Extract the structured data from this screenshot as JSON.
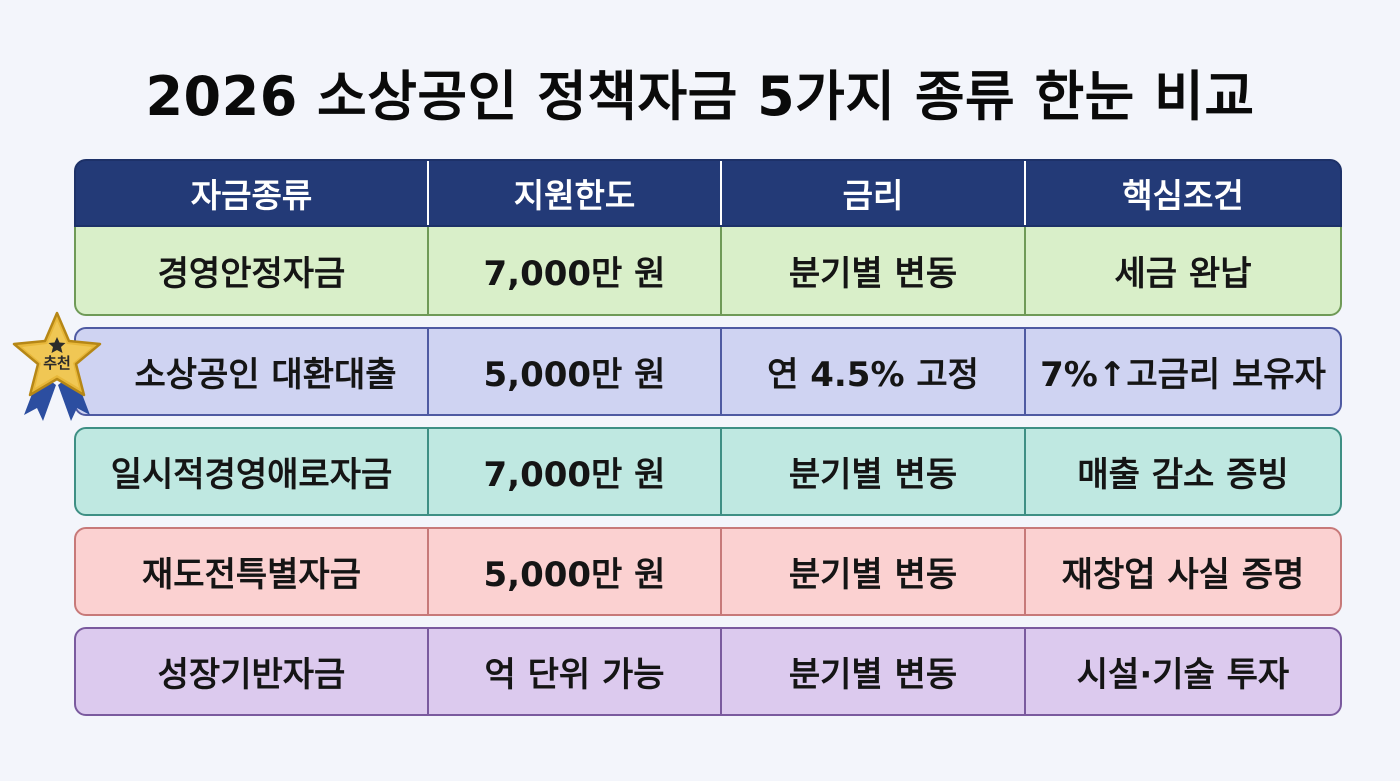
{
  "title": "2026 소상공인 정책자금 5가지 종류 한눈 비교",
  "table": {
    "headers": [
      "자금종류",
      "지원한도",
      "금리",
      "핵심조건"
    ],
    "rows": [
      {
        "cells": [
          "경영안정자금",
          "7,000만 원",
          "분기별 변동",
          "세금 완납"
        ],
        "bg": "#d9efc9",
        "border": "#6f9a57"
      },
      {
        "cells": [
          "소상공인 대환대출",
          "5,000만 원",
          "연 4.5% 고정",
          "7%↑고금리 보유자"
        ],
        "bg": "#cfd3f2",
        "border": "#4f5aa2"
      },
      {
        "cells": [
          "일시적경영애로자금",
          "7,000만 원",
          "분기별 변동",
          "매출 감소 증빙"
        ],
        "bg": "#bfe8e1",
        "border": "#3e8f84"
      },
      {
        "cells": [
          "재도전특별자금",
          "5,000만 원",
          "분기별 변동",
          "재창업 사실 증명"
        ],
        "bg": "#fbd1d1",
        "border": "#c77979"
      },
      {
        "cells": [
          "성장기반자금",
          "억 단위 가능",
          "분기별 변동",
          "시설·기술 투자"
        ],
        "bg": "#dccaee",
        "border": "#7a5a9e"
      }
    ]
  },
  "badge": {
    "label": "추천",
    "icon": "star-badge-icon",
    "star_color": "#e8b83a",
    "ribbon_color": "#2c4ea0"
  },
  "colors": {
    "header_bg": "#233a77",
    "page_bg": "#f3f5fb"
  }
}
